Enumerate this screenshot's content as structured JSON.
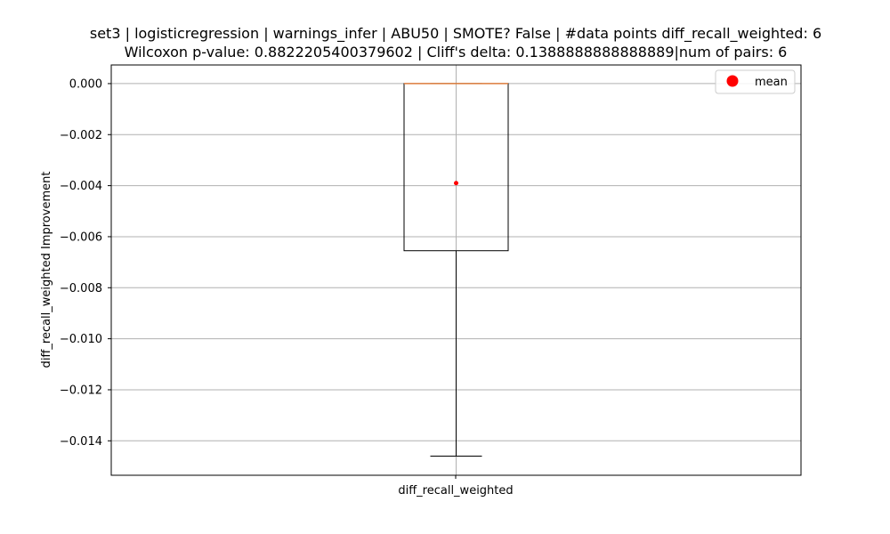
{
  "chart_data": {
    "type": "box",
    "title_line1": "set3 | logisticregression | warnings_infer | ABU50 | SMOTE? False | #data points diff_recall_weighted: 6",
    "title_line2": "Wilcoxon p-value: 0.8822205400379602 | Cliff's delta: 0.1388888888888889|num of pairs: 6",
    "xlabel": "",
    "ylabel": "diff_recall_weighted Improvement",
    "category": "diff_recall_weighted",
    "ylim": [
      -0.01535,
      0.00073
    ],
    "yticks": [
      0.0,
      -0.002,
      -0.004,
      -0.006,
      -0.008,
      -0.01,
      -0.012,
      -0.014
    ],
    "ytick_labels": [
      "0.000",
      "−0.002",
      "−0.004",
      "−0.006",
      "−0.008",
      "−0.010",
      "−0.012",
      "−0.014"
    ],
    "grid": true,
    "box": {
      "whisker_low": -0.0146,
      "q1": -0.00655,
      "median": 0.0,
      "q3": 0.0,
      "whisker_high": 0.0,
      "mean": -0.0039
    },
    "legend": {
      "label": "mean",
      "placement": "top-right"
    },
    "colors": {
      "box": "#000000",
      "median": "#e08040",
      "mean": "#ff0000",
      "grid": "#b0b0b0"
    }
  }
}
